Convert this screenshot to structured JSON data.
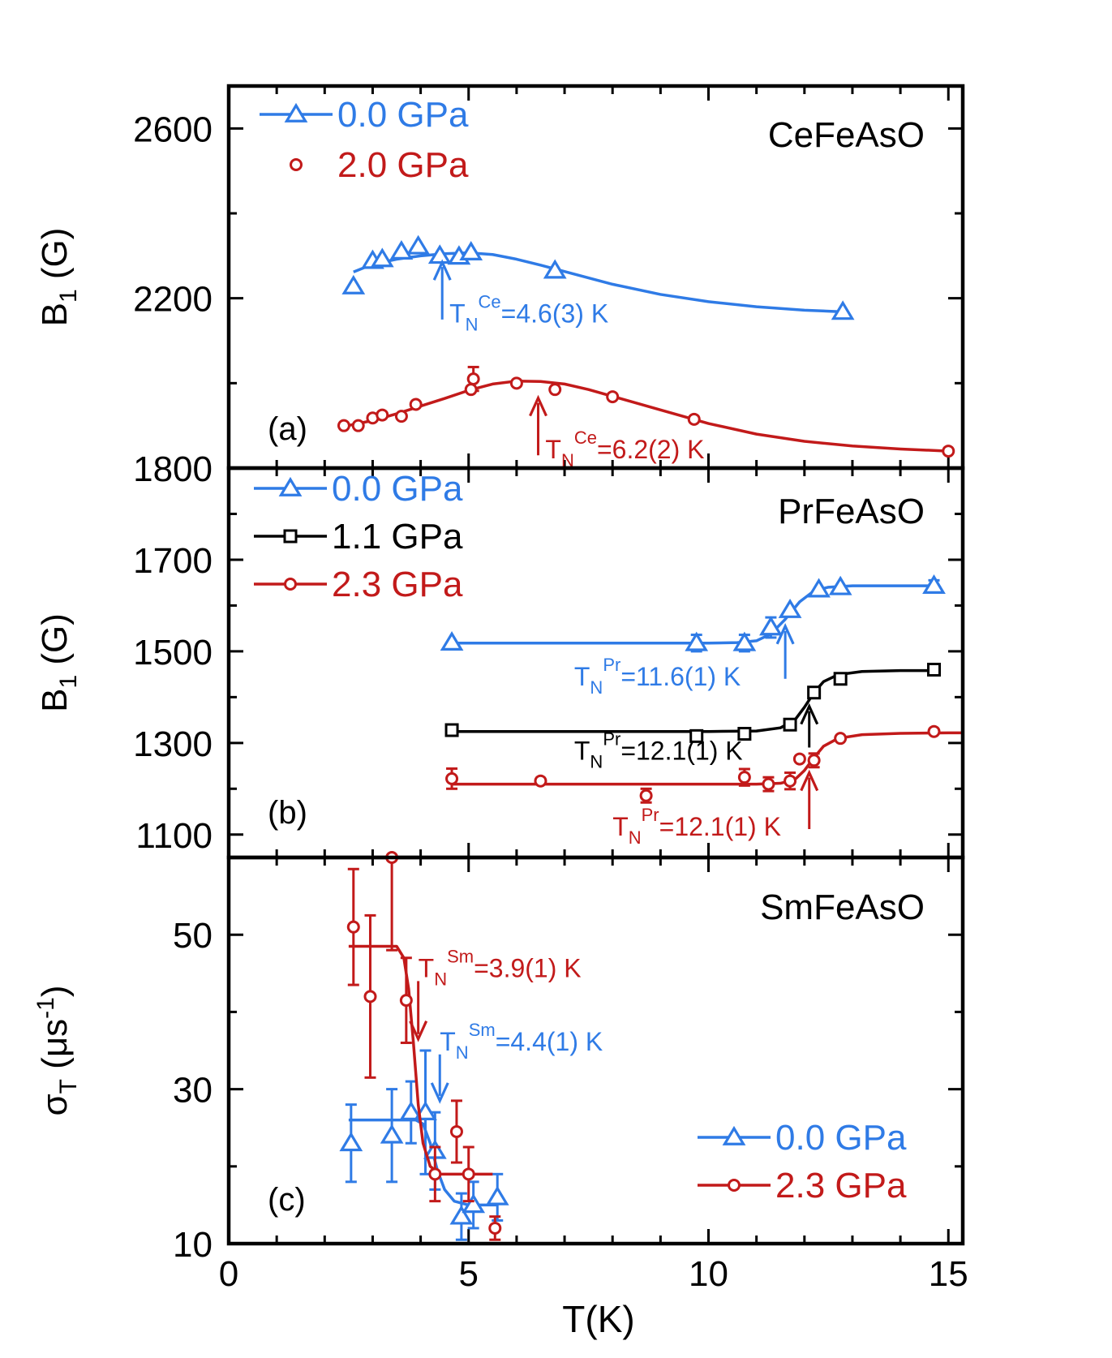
{
  "figure": {
    "xlabel": "T(K)",
    "xticks": [
      "0",
      "5",
      "10",
      "15"
    ],
    "xlim": [
      0,
      15.3
    ]
  },
  "colors": {
    "blue": "#2f7be6",
    "red": "#c21a1a",
    "black": "#000000"
  },
  "chart_data": [
    {
      "type": "scatter",
      "panel": "(a)",
      "compound": "CeFeAsO",
      "ylabel_main": "B",
      "ylabel_sub": "1",
      "ylabel_unit": " (G)",
      "ylim": [
        1800,
        2700
      ],
      "yticks": [
        "1800",
        "2200",
        "2600"
      ],
      "ytick_values": [
        1800,
        2200,
        2600
      ],
      "legend_position": "top-left",
      "series": [
        {
          "name": "0.0 GPa",
          "color": "blue",
          "marker": "triangle",
          "x": [
            2.6,
            3.0,
            3.2,
            3.6,
            3.95,
            4.4,
            4.8,
            5.05,
            6.8,
            12.8
          ],
          "y": [
            2228,
            2288,
            2292,
            2310,
            2322,
            2300,
            2298,
            2308,
            2265,
            2168
          ],
          "err": [
            0,
            0,
            0,
            0,
            0,
            0,
            0,
            0,
            0,
            0
          ],
          "fit_x": [
            2.6,
            3.0,
            3.5,
            4.0,
            4.5,
            5.0,
            5.5,
            6.0,
            6.5,
            7.0,
            8.0,
            9.0,
            10.0,
            11.0,
            12.0,
            12.8
          ],
          "fit_y": [
            2262,
            2280,
            2292,
            2300,
            2305,
            2307,
            2303,
            2292,
            2278,
            2263,
            2233,
            2209,
            2192,
            2180,
            2172,
            2168
          ]
        },
        {
          "name": "2.0 GPa",
          "color": "red",
          "marker": "circle",
          "x": [
            2.4,
            2.7,
            3.0,
            3.2,
            3.6,
            3.9,
            5.05,
            5.1,
            6.0,
            6.8,
            8.0,
            9.7,
            15.0
          ],
          "y": [
            1900,
            1900,
            1918,
            1925,
            1922,
            1950,
            1985,
            2010,
            2000,
            1985,
            1968,
            1915,
            1840
          ],
          "err": [
            0,
            0,
            0,
            0,
            0,
            0,
            0,
            28,
            0,
            0,
            0,
            0,
            0
          ],
          "fit_x": [
            2.4,
            3.0,
            3.5,
            4.0,
            4.5,
            5.0,
            5.5,
            6.0,
            6.5,
            7.0,
            7.5,
            8.0,
            9.0,
            10.0,
            11.0,
            12.0,
            13.0,
            14.0,
            15.0
          ],
          "fit_y": [
            1898,
            1912,
            1928,
            1946,
            1964,
            1983,
            1998,
            2005,
            2004,
            1998,
            1985,
            1969,
            1937,
            1905,
            1880,
            1863,
            1852,
            1845,
            1840
          ]
        }
      ],
      "annotations": [
        {
          "base": "T",
          "sub": "N",
          "sup": "Ce",
          "rest": "=4.6(3) K",
          "color": "blue",
          "arrow_x": 4.45,
          "arrow_y0": 2150,
          "arrow_y1": 2285,
          "label_x": 4.6,
          "label_y": 2143
        },
        {
          "base": "T",
          "sub": "N",
          "sup": "Ce",
          "rest": "=6.2(2) K",
          "color": "red",
          "arrow_x": 6.45,
          "arrow_y0": 1830,
          "arrow_y1": 1965,
          "label_x": 6.6,
          "label_y": 1823
        }
      ]
    },
    {
      "type": "scatter",
      "panel": "(b)",
      "compound": "PrFeAsO",
      "ylabel_main": "B",
      "ylabel_sub": "1",
      "ylabel_unit": " (G)",
      "ylim": [
        1050,
        1900
      ],
      "yticks": [
        "1100",
        "1300",
        "1500",
        "1700"
      ],
      "ytick_values": [
        1100,
        1300,
        1500,
        1700
      ],
      "legend_position": "top-left",
      "series": [
        {
          "name": "0.0 GPa",
          "color": "blue",
          "marker": "triangle",
          "x": [
            4.65,
            9.75,
            10.75,
            11.3,
            11.7,
            12.3,
            12.75,
            14.7
          ],
          "y": [
            1519,
            1518,
            1518,
            1552,
            1590,
            1635,
            1640,
            1643
          ],
          "err": [
            0,
            18,
            18,
            22,
            0,
            0,
            0,
            12
          ],
          "fit_x": [
            4.65,
            6.0,
            8.0,
            10.0,
            10.6,
            11.0,
            11.3,
            11.6,
            11.9,
            12.2,
            12.5,
            13.0,
            14.0,
            14.7
          ],
          "fit_y": [
            1518,
            1518,
            1518,
            1518,
            1519,
            1523,
            1538,
            1570,
            1608,
            1632,
            1640,
            1643,
            1643,
            1643
          ],
          "fit_clip": true
        },
        {
          "name": "1.1 GPa",
          "color": "black",
          "marker": "square",
          "x": [
            4.65,
            9.75,
            10.75,
            11.7,
            12.2,
            12.75,
            14.7
          ],
          "y": [
            1328,
            1315,
            1320,
            1340,
            1410,
            1440,
            1460
          ],
          "err": [
            0,
            0,
            0,
            0,
            0,
            0,
            0
          ],
          "fit_x": [
            4.65,
            6.0,
            8.0,
            10.0,
            11.0,
            11.5,
            11.8,
            12.0,
            12.2,
            12.4,
            12.7,
            13.2,
            14.0,
            14.7
          ],
          "fit_y": [
            1325,
            1325,
            1325,
            1325,
            1326,
            1333,
            1350,
            1378,
            1410,
            1434,
            1449,
            1456,
            1458,
            1458
          ]
        },
        {
          "name": "2.3 GPa",
          "color": "red",
          "marker": "circle",
          "x": [
            4.65,
            6.5,
            8.7,
            10.75,
            11.25,
            11.7,
            11.9,
            12.2,
            12.75,
            14.7
          ],
          "y": [
            1222,
            1217,
            1185,
            1225,
            1210,
            1217,
            1265,
            1262,
            1310,
            1325
          ],
          "err": [
            22,
            0,
            15,
            18,
            15,
            18,
            0,
            15,
            0,
            0
          ],
          "fit_x": [
            4.65,
            6.0,
            8.0,
            10.0,
            11.0,
            11.5,
            11.8,
            12.0,
            12.2,
            12.4,
            12.7,
            13.2,
            14.0,
            15.0,
            15.3
          ],
          "fit_y": [
            1210,
            1210,
            1210,
            1210,
            1210,
            1212,
            1220,
            1240,
            1268,
            1293,
            1310,
            1318,
            1321,
            1322,
            1322
          ]
        }
      ],
      "annotations": [
        {
          "base": "T",
          "sub": "N",
          "sup": "Pr",
          "rest": "=11.6(1) K",
          "color": "blue",
          "arrow_x": 11.6,
          "arrow_y0": 1440,
          "arrow_y1": 1555,
          "label_x": 7.2,
          "label_y": 1425
        },
        {
          "base": "T",
          "sub": "N",
          "sup": "Pr",
          "rest": "=12.1(1) K",
          "color": "black",
          "arrow_x": 12.1,
          "arrow_y0": 1290,
          "arrow_y1": 1380,
          "label_x": 7.2,
          "label_y": 1263
        },
        {
          "base": "T",
          "sub": "N",
          "sup": "Pr",
          "rest": "=12.1(1) K",
          "color": "red",
          "arrow_x": 12.1,
          "arrow_y0": 1112,
          "arrow_y1": 1235,
          "label_x": 8.0,
          "label_y": 1098
        }
      ]
    },
    {
      "type": "scatter",
      "panel": "(c)",
      "compound": "SmFeAsO",
      "ylabel_main": "σ",
      "ylabel_sub": "T",
      "ylabel_unit": " (μs",
      "ylabel_sup": "-1",
      "ylabel_close": ")",
      "ylim": [
        10,
        60
      ],
      "yticks": [
        "10",
        "30",
        "50"
      ],
      "ytick_values": [
        10,
        30,
        50
      ],
      "legend_position": "bottom-right",
      "series": [
        {
          "name": "0.0 GPa",
          "color": "blue",
          "marker": "triangle",
          "x": [
            2.55,
            3.4,
            3.8,
            4.1,
            4.3,
            4.85,
            5.1,
            5.6
          ],
          "y": [
            23,
            24,
            27,
            27,
            22,
            13.5,
            15,
            16
          ],
          "err": [
            5,
            6,
            4,
            8,
            5,
            3,
            3,
            3
          ],
          "fit_x": [
            2.5,
            3.5,
            3.9,
            4.05,
            4.2,
            4.35,
            4.5,
            4.7,
            5.0,
            5.3,
            5.6
          ],
          "fit_y": [
            26,
            26,
            26,
            25.5,
            23,
            19.5,
            17,
            15.5,
            15,
            15,
            15
          ],
          "fit_clip": true
        },
        {
          "name": "2.3 GPa",
          "color": "red",
          "marker": "circle",
          "x": [
            2.6,
            2.95,
            3.4,
            3.7,
            4.3,
            4.75,
            5.0,
            5.55
          ],
          "y": [
            51,
            42,
            60,
            41.5,
            19,
            24.5,
            19,
            12
          ],
          "err": [
            7.5,
            10.5,
            12,
            5.5,
            3.5,
            4,
            3.5,
            1.5
          ],
          "fit_x": [
            2.5,
            3.5,
            3.65,
            3.75,
            3.85,
            3.95,
            4.05,
            4.2,
            4.4,
            4.7,
            5.0,
            5.5
          ],
          "fit_y": [
            48.5,
            48.5,
            47,
            43,
            36,
            28,
            23,
            20,
            19,
            19,
            19,
            19
          ],
          "fit_clip": true
        }
      ],
      "annotations": [
        {
          "base": "T",
          "sub": "N",
          "sup": "Sm",
          "rest": "=3.9(1) K",
          "color": "red",
          "arrow_x": 3.95,
          "arrow_y0": 44,
          "arrow_y1": 36.5,
          "label_x": 3.95,
          "label_y": 44.5
        },
        {
          "base": "T",
          "sub": "N",
          "sup": "Sm",
          "rest": "=4.4(1) K",
          "color": "blue",
          "arrow_x": 4.4,
          "arrow_y0": 34.5,
          "arrow_y1": 28.5,
          "label_x": 4.4,
          "label_y": 35
        }
      ]
    }
  ]
}
